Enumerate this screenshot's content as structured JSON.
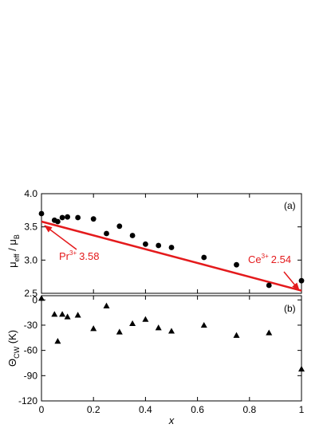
{
  "chart_data": [
    {
      "panel": "(a)",
      "type": "scatter",
      "ylabel": {
        "main": "μ",
        "sub1": "eff",
        "mid": " / μ",
        "sub2": "B"
      },
      "xlim": [
        0,
        1
      ],
      "ylim": [
        2.5,
        4.0
      ],
      "y_ticks": [
        "2.5",
        "3.0",
        "3.5",
        "4.0"
      ],
      "y_tick_values": [
        2.5,
        3.0,
        3.5,
        4.0
      ],
      "series": [
        {
          "marker": "circle",
          "color": "#000000",
          "x": [
            0.0,
            0.05,
            0.0625,
            0.08,
            0.1,
            0.14,
            0.2,
            0.25,
            0.3,
            0.35,
            0.4,
            0.45,
            0.5,
            0.625,
            0.75,
            0.875,
            1.0
          ],
          "y": [
            3.7,
            3.6,
            3.58,
            3.64,
            3.65,
            3.64,
            3.62,
            3.4,
            3.51,
            3.37,
            3.24,
            3.22,
            3.19,
            3.04,
            2.93,
            2.62,
            2.69
          ]
        }
      ],
      "reference_line": {
        "color": "#e41a1c",
        "x": [
          0,
          1
        ],
        "y": [
          3.58,
          2.54
        ]
      },
      "annotations": [
        {
          "base": "Pr",
          "sup": "3+",
          "value": "3.58",
          "arrow_to": [
            0,
            3.58
          ]
        },
        {
          "base": "Ce",
          "sup": "3+",
          "value": "2.54",
          "arrow_to": [
            1,
            2.54
          ]
        }
      ]
    },
    {
      "panel": "(b)",
      "type": "scatter",
      "xlabel": "x",
      "ylabel": {
        "main": "Θ",
        "sub1": "CW",
        "mid": " (K)"
      },
      "xlim": [
        0,
        1
      ],
      "ylim": [
        -120,
        5
      ],
      "x_ticks": [
        "0",
        "0.2",
        "0.4",
        "0.6",
        "0.8",
        "1"
      ],
      "x_tick_values": [
        0,
        0.2,
        0.4,
        0.6,
        0.8,
        1.0
      ],
      "y_ticks": [
        "0",
        "-30",
        "-60",
        "-90",
        "-120"
      ],
      "y_tick_values": [
        0,
        -30,
        -60,
        -90,
        -120
      ],
      "series": [
        {
          "marker": "triangle",
          "color": "#000000",
          "x": [
            0.0,
            0.05,
            0.0625,
            0.08,
            0.1,
            0.14,
            0.2,
            0.25,
            0.3,
            0.35,
            0.4,
            0.45,
            0.5,
            0.625,
            0.75,
            0.875,
            1.0
          ],
          "y": [
            2,
            -17,
            -49,
            -17,
            -20,
            -18,
            -34,
            -7,
            -38,
            -28,
            -23,
            -33,
            -37,
            -30,
            -42,
            -39,
            -82
          ]
        }
      ]
    }
  ]
}
